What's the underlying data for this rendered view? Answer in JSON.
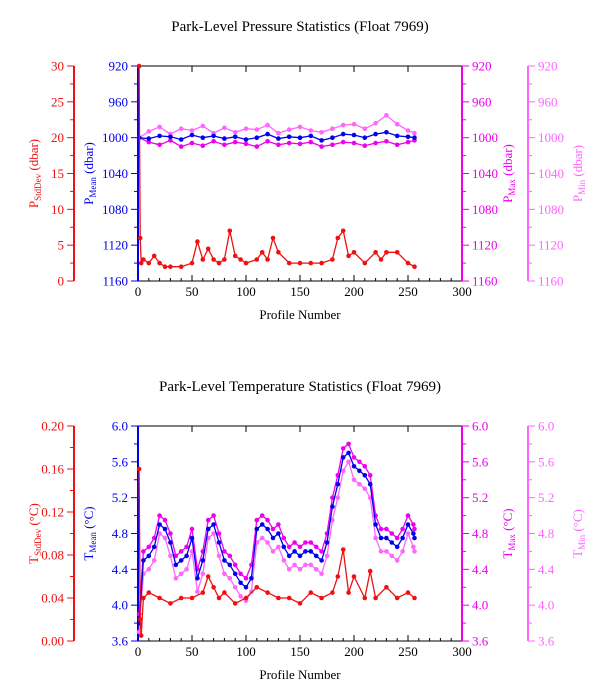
{
  "colors": {
    "stddev": "#ee1111",
    "mean": "#0000ee",
    "max": "#ee00ee",
    "min": "#ff66ff",
    "axis": "#000000"
  },
  "chart_data": [
    {
      "type": "line",
      "title": "Park-Level Pressure Statistics (Float 7969)",
      "xlabel": "Profile Number",
      "xlim": [
        0,
        300
      ],
      "xticks": [
        0,
        50,
        100,
        150,
        200,
        250,
        300
      ],
      "grid": false,
      "axes": {
        "stddev": {
          "label": "P",
          "sub": "StdDev",
          "unit": " (dbar)",
          "lim": [
            0,
            30
          ],
          "ticks": [
            0,
            5,
            10,
            15,
            20,
            25,
            30
          ],
          "tick_labels": [
            "0",
            "5",
            "10",
            "15",
            "20",
            "25",
            "30"
          ]
        },
        "mean": {
          "label": "P",
          "sub": "Mean",
          "unit": " (dbar)",
          "lim": [
            1160,
            920
          ],
          "ticks": [
            920,
            960,
            1000,
            1040,
            1080,
            1120,
            1160
          ],
          "tick_labels": [
            "920",
            "960",
            "1000",
            "1040",
            "1080",
            "1120",
            "1160"
          ]
        },
        "max": {
          "label": "P",
          "sub": "Max",
          "unit": " (dbar)",
          "lim": [
            1160,
            920
          ],
          "ticks": [
            920,
            960,
            1000,
            1040,
            1080,
            1120,
            1160
          ],
          "tick_labels": [
            "920",
            "960",
            "1000",
            "1040",
            "1080",
            "1120",
            "1160"
          ]
        },
        "min": {
          "label": "P",
          "sub": "Min",
          "unit": " (dbar)",
          "lim": [
            1160,
            920
          ],
          "ticks": [
            920,
            960,
            1000,
            1040,
            1080,
            1120,
            1160
          ],
          "tick_labels": [
            "920",
            "960",
            "1000",
            "1040",
            "1080",
            "1120",
            "1160"
          ]
        }
      },
      "series": [
        {
          "axis": "min",
          "x": [
            1,
            10,
            20,
            30,
            40,
            50,
            60,
            70,
            80,
            90,
            100,
            110,
            120,
            130,
            140,
            150,
            160,
            170,
            180,
            190,
            200,
            210,
            220,
            230,
            240,
            250,
            256
          ],
          "values": [
            1000,
            993,
            988,
            996,
            990,
            992,
            987,
            995,
            989,
            994,
            990,
            991,
            986,
            995,
            991,
            988,
            992,
            994,
            990,
            986,
            985,
            990,
            984,
            975,
            985,
            992,
            995
          ]
        },
        {
          "axis": "max",
          "x": [
            1,
            10,
            20,
            30,
            40,
            50,
            60,
            70,
            80,
            90,
            100,
            110,
            120,
            130,
            140,
            150,
            160,
            170,
            180,
            190,
            200,
            210,
            220,
            230,
            240,
            250,
            256
          ],
          "values": [
            1000,
            1005,
            1008,
            1003,
            1010,
            1006,
            1009,
            1004,
            1008,
            1005,
            1007,
            1010,
            1004,
            1008,
            1006,
            1007,
            1005,
            1010,
            1008,
            1005,
            1006,
            1009,
            1006,
            1004,
            1008,
            1005,
            1003
          ]
        },
        {
          "axis": "mean",
          "x": [
            1,
            10,
            20,
            30,
            40,
            50,
            60,
            70,
            80,
            90,
            100,
            110,
            120,
            130,
            140,
            150,
            160,
            170,
            180,
            190,
            200,
            210,
            220,
            230,
            240,
            250,
            256
          ],
          "values": [
            1000,
            1001,
            998,
            999,
            1002,
            997,
            1000,
            998,
            1001,
            999,
            1002,
            1000,
            996,
            1001,
            999,
            1000,
            998,
            1003,
            1000,
            996,
            997,
            1000,
            996,
            994,
            998,
            999,
            1000
          ]
        },
        {
          "axis": "stddev",
          "x": [
            1,
            2,
            3,
            5,
            10,
            15,
            20,
            25,
            30,
            40,
            50,
            55,
            60,
            65,
            70,
            75,
            80,
            85,
            90,
            95,
            100,
            110,
            115,
            120,
            125,
            130,
            140,
            150,
            160,
            170,
            180,
            185,
            190,
            195,
            200,
            210,
            220,
            225,
            230,
            240,
            250,
            256
          ],
          "values": [
            30,
            6,
            2.5,
            3,
            2.5,
            3.5,
            2.5,
            2,
            2,
            2,
            2.5,
            5.5,
            3,
            4.5,
            3,
            2.5,
            3,
            7,
            3.5,
            3,
            2.5,
            3,
            4,
            3,
            6,
            4,
            2.5,
            2.5,
            2.5,
            2.5,
            3,
            6,
            7,
            3.5,
            4,
            2.5,
            4,
            3,
            4,
            4,
            2.5,
            2
          ]
        }
      ]
    },
    {
      "type": "line",
      "title": "Park-Level Temperature Statistics (Float 7969)",
      "xlabel": "Profile Number",
      "xlim": [
        0,
        300
      ],
      "xticks": [
        0,
        50,
        100,
        150,
        200,
        250,
        300
      ],
      "grid": false,
      "axes": {
        "stddev": {
          "label": "T",
          "sub": "StdDev",
          "unit": " (°C)",
          "lim": [
            0,
            0.2
          ],
          "ticks": [
            0,
            0.04,
            0.08,
            0.12,
            0.16,
            0.2
          ],
          "tick_labels": [
            "0.00",
            "0.04",
            "0.08",
            "0.12",
            "0.16",
            "0.20"
          ]
        },
        "mean": {
          "label": "T",
          "sub": "Mean",
          "unit": " (°C)",
          "lim": [
            3.6,
            6.0
          ],
          "ticks": [
            3.6,
            4.0,
            4.4,
            4.8,
            5.2,
            5.6,
            6.0
          ],
          "tick_labels": [
            "3.6",
            "4.0",
            "4.4",
            "4.8",
            "5.2",
            "5.6",
            "6.0"
          ]
        },
        "max": {
          "label": "T",
          "sub": "Max",
          "unit": " (°C)",
          "lim": [
            3.6,
            6.0
          ],
          "ticks": [
            3.6,
            4.0,
            4.4,
            4.8,
            5.2,
            5.6,
            6.0
          ],
          "tick_labels": [
            "3.6",
            "4.0",
            "4.4",
            "4.8",
            "5.2",
            "5.6",
            "6.0"
          ]
        },
        "min": {
          "label": "T",
          "sub": "Min",
          "unit": " (°C)",
          "lim": [
            3.6,
            6.0
          ],
          "ticks": [
            3.6,
            4.0,
            4.4,
            4.8,
            5.2,
            5.6,
            6.0
          ],
          "tick_labels": [
            "3.6",
            "4.0",
            "4.4",
            "4.8",
            "5.2",
            "5.6",
            "6.0"
          ]
        }
      },
      "series": [
        {
          "axis": "min",
          "x": [
            1,
            5,
            10,
            15,
            20,
            25,
            30,
            35,
            40,
            45,
            50,
            55,
            60,
            65,
            70,
            75,
            80,
            85,
            90,
            95,
            100,
            105,
            110,
            115,
            120,
            125,
            130,
            135,
            140,
            145,
            150,
            155,
            160,
            165,
            170,
            175,
            180,
            185,
            190,
            195,
            200,
            205,
            210,
            215,
            220,
            225,
            230,
            235,
            240,
            245,
            250,
            255,
            256
          ],
          "values": [
            3.7,
            4.35,
            4.4,
            4.5,
            4.8,
            4.75,
            4.55,
            4.3,
            4.35,
            4.4,
            4.6,
            4.15,
            4.35,
            4.75,
            4.8,
            4.55,
            4.35,
            4.3,
            4.2,
            4.1,
            4.05,
            4.15,
            4.7,
            4.75,
            4.7,
            4.6,
            4.65,
            4.5,
            4.4,
            4.45,
            4.4,
            4.45,
            4.45,
            4.4,
            4.35,
            4.55,
            4.95,
            5.2,
            5.5,
            5.6,
            5.4,
            5.35,
            5.3,
            5.2,
            4.75,
            4.6,
            4.6,
            4.55,
            4.5,
            4.6,
            4.8,
            4.65,
            4.6
          ]
        },
        {
          "axis": "max",
          "x": [
            1,
            5,
            10,
            15,
            20,
            25,
            30,
            35,
            40,
            45,
            50,
            55,
            60,
            65,
            70,
            75,
            80,
            85,
            90,
            95,
            100,
            105,
            110,
            115,
            120,
            125,
            130,
            135,
            140,
            145,
            150,
            155,
            160,
            165,
            170,
            175,
            180,
            185,
            190,
            195,
            200,
            205,
            210,
            215,
            220,
            225,
            230,
            235,
            240,
            245,
            250,
            255,
            256
          ],
          "values": [
            3.9,
            4.6,
            4.65,
            4.75,
            5.0,
            4.95,
            4.8,
            4.55,
            4.6,
            4.65,
            4.85,
            4.4,
            4.6,
            4.95,
            5.0,
            4.8,
            4.6,
            4.55,
            4.45,
            4.35,
            4.3,
            4.45,
            4.95,
            5.0,
            4.95,
            4.85,
            4.9,
            4.75,
            4.65,
            4.7,
            4.65,
            4.7,
            4.7,
            4.65,
            4.6,
            4.8,
            5.2,
            5.45,
            5.75,
            5.8,
            5.65,
            5.6,
            5.55,
            5.45,
            5.0,
            4.85,
            4.85,
            4.8,
            4.75,
            4.85,
            5.0,
            4.9,
            4.85
          ]
        },
        {
          "axis": "mean",
          "x": [
            1,
            5,
            10,
            15,
            20,
            25,
            30,
            35,
            40,
            45,
            50,
            55,
            60,
            65,
            70,
            75,
            80,
            85,
            90,
            95,
            100,
            105,
            110,
            115,
            120,
            125,
            130,
            135,
            140,
            145,
            150,
            155,
            160,
            165,
            170,
            175,
            180,
            185,
            190,
            195,
            200,
            205,
            210,
            215,
            220,
            225,
            230,
            235,
            240,
            245,
            250,
            255,
            256
          ],
          "values": [
            3.8,
            4.5,
            4.55,
            4.65,
            4.9,
            4.85,
            4.7,
            4.45,
            4.5,
            4.55,
            4.75,
            4.3,
            4.5,
            4.85,
            4.9,
            4.7,
            4.5,
            4.45,
            4.35,
            4.25,
            4.2,
            4.3,
            4.85,
            4.9,
            4.85,
            4.75,
            4.8,
            4.65,
            4.55,
            4.6,
            4.55,
            4.6,
            4.6,
            4.55,
            4.5,
            4.7,
            5.1,
            5.35,
            5.65,
            5.7,
            5.55,
            5.5,
            5.45,
            5.35,
            4.9,
            4.75,
            4.75,
            4.7,
            4.65,
            4.75,
            4.9,
            4.8,
            4.75
          ]
        },
        {
          "axis": "stddev",
          "x": [
            1,
            2,
            3,
            5,
            10,
            20,
            30,
            40,
            50,
            60,
            65,
            70,
            75,
            80,
            90,
            100,
            110,
            120,
            130,
            140,
            150,
            160,
            170,
            180,
            185,
            190,
            195,
            200,
            210,
            215,
            220,
            230,
            240,
            250,
            256
          ],
          "values": [
            0.16,
            0.02,
            0.005,
            0.04,
            0.045,
            0.04,
            0.035,
            0.04,
            0.04,
            0.045,
            0.06,
            0.05,
            0.04,
            0.045,
            0.035,
            0.04,
            0.05,
            0.045,
            0.04,
            0.04,
            0.035,
            0.045,
            0.04,
            0.045,
            0.06,
            0.085,
            0.045,
            0.06,
            0.04,
            0.065,
            0.04,
            0.05,
            0.04,
            0.045,
            0.04
          ]
        }
      ]
    }
  ]
}
